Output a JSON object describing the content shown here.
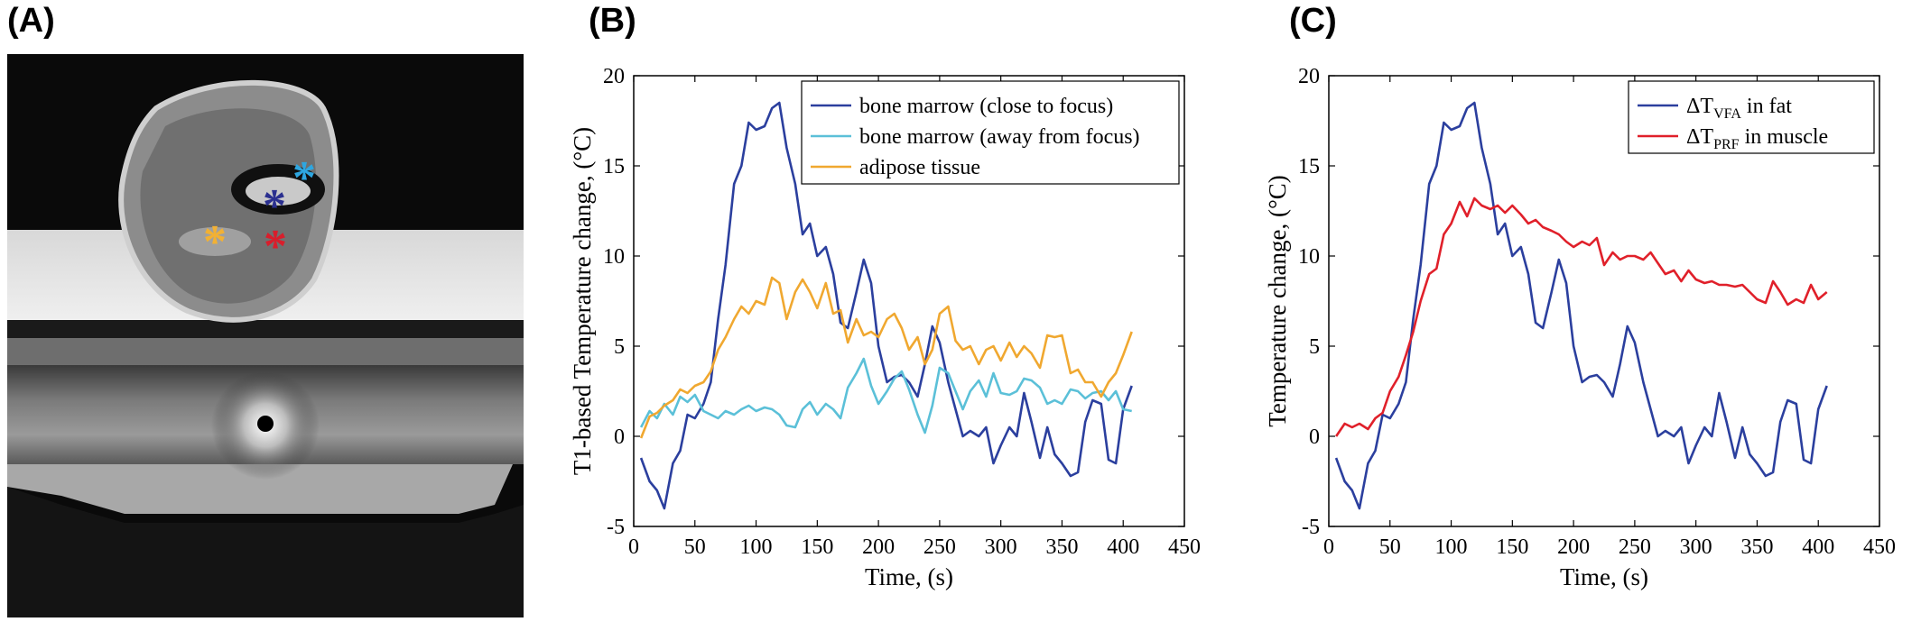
{
  "panels": {
    "a": "(A)",
    "b": "(B)",
    "c": "(C)"
  },
  "mri": {
    "markers": [
      {
        "name": "bone-marrow-close",
        "color": "#2a2f8f",
        "glyph": "*"
      },
      {
        "name": "bone-marrow-away",
        "color": "#2ea6e0",
        "glyph": "*"
      },
      {
        "name": "adipose",
        "color": "#f2b134",
        "glyph": "*"
      },
      {
        "name": "muscle",
        "color": "#d81e2c",
        "glyph": "*"
      }
    ]
  },
  "chart_data": [
    {
      "type": "line",
      "xlabel": "Time, (s)",
      "ylabel": "T1-based Temperature change, (°C)",
      "xlim": [
        0,
        450
      ],
      "ylim": [
        -5,
        20
      ],
      "xticks": [
        0,
        50,
        100,
        150,
        200,
        250,
        300,
        350,
        400,
        450
      ],
      "yticks": [
        -5,
        0,
        5,
        10,
        15,
        20
      ],
      "grid": false,
      "legend_position": "top-right",
      "series": [
        {
          "name": "bone marrow (close to focus)",
          "color": "#2b3f9e",
          "x": [
            6,
            13,
            19,
            25,
            32,
            38,
            44,
            50,
            57,
            63,
            69,
            75,
            82,
            88,
            94,
            100,
            107,
            113,
            119,
            125,
            132,
            138,
            144,
            150,
            157,
            163,
            169,
            175,
            182,
            188,
            194,
            200,
            207,
            213,
            219,
            225,
            232,
            238,
            244,
            250,
            257,
            263,
            269,
            275,
            282,
            288,
            294,
            300,
            307,
            313,
            319,
            325,
            332,
            338,
            344,
            350,
            357,
            363,
            369,
            375,
            382,
            388,
            394,
            400,
            407
          ],
          "y": [
            -1.2,
            -2.5,
            -3.0,
            -4.0,
            -1.5,
            -0.8,
            1.2,
            1.0,
            1.8,
            3.0,
            6.5,
            9.5,
            14.0,
            15.0,
            17.4,
            17.0,
            17.2,
            18.2,
            18.5,
            16.0,
            14.0,
            11.2,
            11.8,
            10.0,
            10.5,
            9.0,
            6.3,
            6.0,
            8.0,
            9.8,
            8.5,
            5.0,
            3.0,
            3.3,
            3.4,
            3.0,
            2.2,
            4.0,
            6.1,
            5.2,
            3.0,
            1.5,
            0.0,
            0.3,
            0.0,
            0.5,
            -1.5,
            -0.5,
            0.5,
            0.0,
            2.4,
            0.8,
            -1.2,
            0.5,
            -1.0,
            -1.5,
            -2.2,
            -2.0,
            0.8,
            2.0,
            1.8,
            -1.3,
            -1.5,
            1.5,
            2.8
          ]
        },
        {
          "name": "bone marrow (away from focus)",
          "color": "#5bc0d8",
          "x": [
            6,
            13,
            19,
            25,
            32,
            38,
            44,
            50,
            57,
            63,
            69,
            75,
            82,
            88,
            94,
            100,
            107,
            113,
            119,
            125,
            132,
            138,
            144,
            150,
            157,
            163,
            169,
            175,
            182,
            188,
            194,
            200,
            207,
            213,
            219,
            225,
            232,
            238,
            244,
            250,
            257,
            263,
            269,
            275,
            282,
            288,
            294,
            300,
            307,
            313,
            319,
            325,
            332,
            338,
            344,
            350,
            357,
            363,
            369,
            375,
            382,
            388,
            394,
            400,
            407
          ],
          "y": [
            0.5,
            1.4,
            1.0,
            1.8,
            1.2,
            2.2,
            1.9,
            2.3,
            1.4,
            1.2,
            1.0,
            1.4,
            1.2,
            1.5,
            1.7,
            1.4,
            1.6,
            1.5,
            1.2,
            0.6,
            0.5,
            1.5,
            1.9,
            1.2,
            1.8,
            1.5,
            1.0,
            2.7,
            3.5,
            4.3,
            2.8,
            1.8,
            2.5,
            3.2,
            3.6,
            2.6,
            1.2,
            0.2,
            1.7,
            3.8,
            3.5,
            2.5,
            1.5,
            2.5,
            3.1,
            2.2,
            3.5,
            2.4,
            2.3,
            2.5,
            3.2,
            3.1,
            2.7,
            1.8,
            2.0,
            1.8,
            2.6,
            2.5,
            2.1,
            2.4,
            2.5,
            2.0,
            2.5,
            1.5,
            1.4
          ]
        },
        {
          "name": "adipose tissue",
          "color": "#f0a830",
          "x": [
            6,
            13,
            19,
            25,
            32,
            38,
            44,
            50,
            57,
            63,
            69,
            75,
            82,
            88,
            94,
            100,
            107,
            113,
            119,
            125,
            132,
            138,
            144,
            150,
            157,
            163,
            169,
            175,
            182,
            188,
            194,
            200,
            207,
            213,
            219,
            225,
            232,
            238,
            244,
            250,
            257,
            263,
            269,
            275,
            282,
            288,
            294,
            300,
            307,
            313,
            319,
            325,
            332,
            338,
            344,
            350,
            357,
            363,
            369,
            375,
            382,
            388,
            394,
            400,
            407
          ],
          "y": [
            -0.1,
            1.1,
            1.3,
            1.7,
            2.0,
            2.6,
            2.4,
            2.8,
            3.0,
            3.6,
            4.8,
            5.5,
            6.5,
            7.2,
            6.8,
            7.5,
            7.3,
            8.8,
            8.5,
            6.5,
            8.0,
            8.7,
            8.0,
            7.1,
            8.5,
            6.8,
            7.0,
            5.2,
            6.5,
            5.6,
            5.8,
            5.5,
            6.5,
            6.8,
            6.0,
            4.8,
            5.5,
            4.0,
            4.8,
            6.8,
            7.2,
            5.3,
            4.8,
            5.0,
            4.0,
            4.8,
            5.0,
            4.2,
            5.2,
            4.4,
            5.0,
            4.6,
            3.8,
            5.6,
            5.5,
            5.6,
            3.5,
            3.7,
            3.0,
            3.0,
            2.2,
            3.0,
            3.5,
            4.5,
            5.8
          ]
        }
      ]
    },
    {
      "type": "line",
      "xlabel": "Time, (s)",
      "ylabel": "Temperature change, (°C)",
      "xlim": [
        0,
        450
      ],
      "ylim": [
        -5,
        20
      ],
      "xticks": [
        0,
        50,
        100,
        150,
        200,
        250,
        300,
        350,
        400,
        450
      ],
      "yticks": [
        -5,
        0,
        5,
        10,
        15,
        20
      ],
      "grid": false,
      "legend_position": "top-right",
      "series": [
        {
          "name": "ΔT",
          "name_sub": "VFA",
          "name_suffix": " in fat",
          "color": "#2b3f9e",
          "x": [
            6,
            13,
            19,
            25,
            32,
            38,
            44,
            50,
            57,
            63,
            69,
            75,
            82,
            88,
            94,
            100,
            107,
            113,
            119,
            125,
            132,
            138,
            144,
            150,
            157,
            163,
            169,
            175,
            182,
            188,
            194,
            200,
            207,
            213,
            219,
            225,
            232,
            238,
            244,
            250,
            257,
            263,
            269,
            275,
            282,
            288,
            294,
            300,
            307,
            313,
            319,
            325,
            332,
            338,
            344,
            350,
            357,
            363,
            369,
            375,
            382,
            388,
            394,
            400,
            407
          ],
          "y": [
            -1.2,
            -2.5,
            -3.0,
            -4.0,
            -1.5,
            -0.8,
            1.2,
            1.0,
            1.8,
            3.0,
            6.5,
            9.5,
            14.0,
            15.0,
            17.4,
            17.0,
            17.2,
            18.2,
            18.5,
            16.0,
            14.0,
            11.2,
            11.8,
            10.0,
            10.5,
            9.0,
            6.3,
            6.0,
            8.0,
            9.8,
            8.5,
            5.0,
            3.0,
            3.3,
            3.4,
            3.0,
            2.2,
            4.0,
            6.1,
            5.2,
            3.0,
            1.5,
            0.0,
            0.3,
            0.0,
            0.5,
            -1.5,
            -0.5,
            0.5,
            0.0,
            2.4,
            0.8,
            -1.2,
            0.5,
            -1.0,
            -1.5,
            -2.2,
            -2.0,
            0.8,
            2.0,
            1.8,
            -1.3,
            -1.5,
            1.5,
            2.8
          ]
        },
        {
          "name": "ΔT",
          "name_sub": "PRF",
          "name_suffix": " in muscle",
          "color": "#e0202a",
          "x": [
            6,
            13,
            19,
            25,
            32,
            38,
            44,
            50,
            57,
            63,
            69,
            75,
            82,
            88,
            94,
            100,
            107,
            113,
            119,
            125,
            132,
            138,
            144,
            150,
            157,
            163,
            169,
            175,
            182,
            188,
            194,
            200,
            207,
            213,
            219,
            225,
            232,
            238,
            244,
            250,
            257,
            263,
            269,
            275,
            282,
            288,
            294,
            300,
            307,
            313,
            319,
            325,
            332,
            338,
            344,
            350,
            357,
            363,
            369,
            375,
            382,
            388,
            394,
            400,
            407
          ],
          "y": [
            0.0,
            0.7,
            0.5,
            0.7,
            0.4,
            1.0,
            1.3,
            2.5,
            3.3,
            4.5,
            5.8,
            7.5,
            9.0,
            9.3,
            11.2,
            11.8,
            13.0,
            12.2,
            13.2,
            12.8,
            12.6,
            12.8,
            12.4,
            12.8,
            12.3,
            11.8,
            12.0,
            11.6,
            11.4,
            11.2,
            10.8,
            10.5,
            10.8,
            10.6,
            11.0,
            9.5,
            10.2,
            9.8,
            10.0,
            10.0,
            9.8,
            10.2,
            9.6,
            9.0,
            9.2,
            8.6,
            9.2,
            8.7,
            8.5,
            8.6,
            8.4,
            8.4,
            8.3,
            8.4,
            8.0,
            7.6,
            7.4,
            8.6,
            8.0,
            7.3,
            7.6,
            7.4,
            8.4,
            7.6,
            8.0
          ]
        }
      ]
    }
  ]
}
